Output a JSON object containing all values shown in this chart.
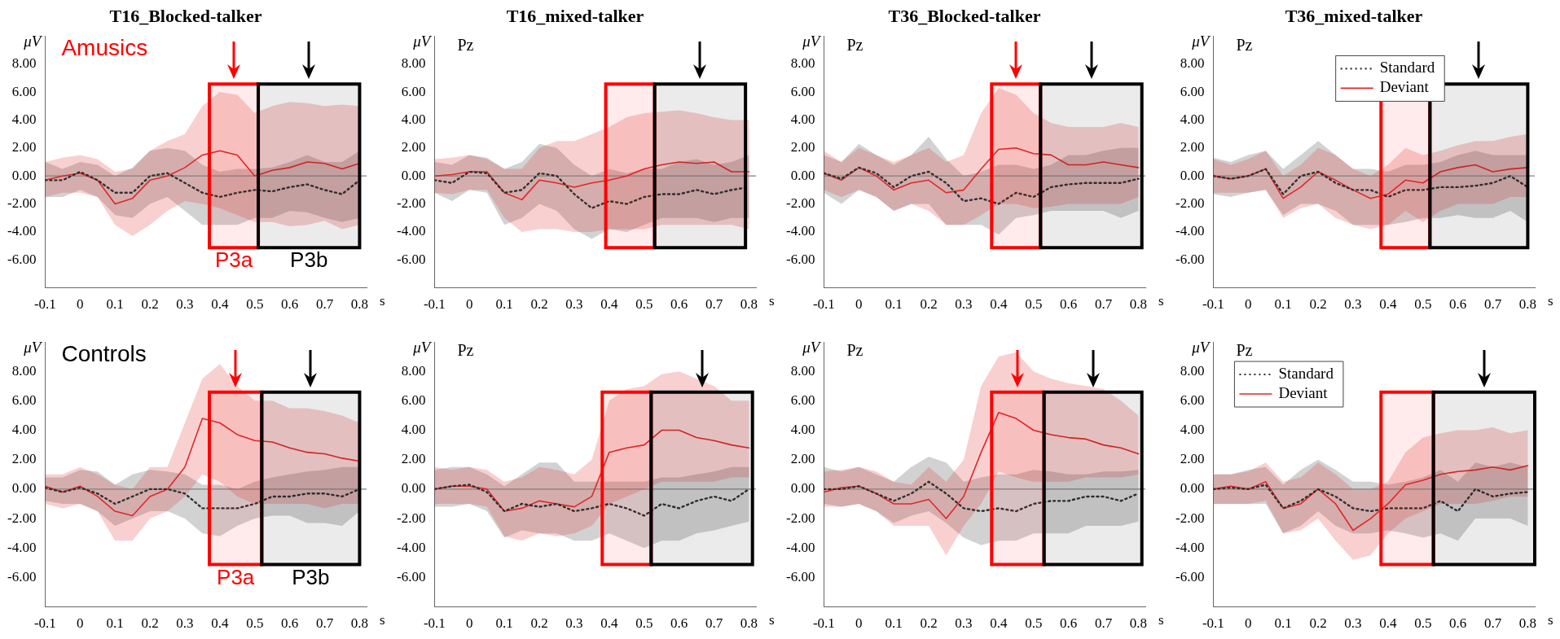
{
  "chart_data": [
    {
      "type": "line",
      "title": "T16_Blocked-talker",
      "xlabel": "s",
      "ylabel": "μV",
      "annotations": [
        "Amusics"
      ],
      "x": [
        -0.1,
        -0.05,
        0,
        0.05,
        0.1,
        0.15,
        0.2,
        0.25,
        0.3,
        0.35,
        0.4,
        0.45,
        0.5,
        0.55,
        0.6,
        0.65,
        0.7,
        0.75,
        0.8
      ],
      "xlim": [
        -0.1,
        0.82
      ],
      "ylim": [
        -8,
        10
      ],
      "xticks": [
        -0.1,
        0,
        0.1,
        0.2,
        0.3,
        0.4,
        0.5,
        0.6,
        0.7,
        0.8
      ],
      "yticks": [
        {
          "value": -6,
          "label": "-6.00"
        },
        {
          "value": -4,
          "label": "-4.00"
        },
        {
          "value": -2,
          "label": "-2.00"
        },
        {
          "value": 0,
          "label": "0.00"
        },
        {
          "value": 2,
          "label": "2.00"
        },
        {
          "value": 4,
          "label": "4.00"
        },
        {
          "value": 6,
          "label": "6.00"
        },
        {
          "value": 8,
          "label": "8.00"
        }
      ],
      "ref_lines": [
        {
          "axis": "y",
          "value": 0,
          "color": "#808080"
        }
      ],
      "bands": [
        {
          "axis": "x",
          "from": 0.37,
          "to": 0.51,
          "color": "#ff0000",
          "label": "P3a"
        },
        {
          "axis": "x",
          "from": 0.51,
          "to": 0.8,
          "color": "#000000",
          "label": "P3b"
        }
      ],
      "series": [
        {
          "color": "#303030",
          "line_style": "dotted",
          "values": [
            -0.3,
            -0.3,
            0.3,
            -0.3,
            -1.2,
            -1.2,
            0,
            0.2,
            -0.5,
            -1.2,
            -1.5,
            -1.2,
            -1.0,
            -1.1,
            -0.8,
            -0.6,
            -1.0,
            -1.3,
            -0.3
          ],
          "lower": [
            -1.5,
            -1.5,
            -1.0,
            -1.5,
            -2.8,
            -3.0,
            -2.0,
            -1.5,
            -2.5,
            -3.5,
            -3.5,
            -3.5,
            -3.0,
            -3.0,
            -2.5,
            -2.6,
            -3.0,
            -3.3,
            -3.0
          ],
          "upper": [
            1.0,
            0.5,
            1.0,
            0.8,
            0,
            0.6,
            1.8,
            2.0,
            1.8,
            0.8,
            0.3,
            0.5,
            0.5,
            0.6,
            1.0,
            1.5,
            1.0,
            1.0,
            1.8
          ]
        },
        {
          "color": "#e02828",
          "line_style": "solid",
          "values": [
            -0.3,
            0,
            0.2,
            -0.3,
            -2.0,
            -1.6,
            -0.3,
            0,
            0.6,
            1.5,
            1.8,
            1.5,
            0,
            0.4,
            0.6,
            1.0,
            0.9,
            0.5,
            0.9
          ],
          "lower": [
            -1.5,
            -1.2,
            -1.2,
            -1.5,
            -3.5,
            -4.3,
            -3.5,
            -2.5,
            -1.8,
            -2.0,
            -2.3,
            -2.8,
            -3.3,
            -3.3,
            -3.6,
            -3.5,
            -3.2,
            -3.8,
            -3.5
          ],
          "upper": [
            1.0,
            1.3,
            1.5,
            1.2,
            0.3,
            0.5,
            1.8,
            2.5,
            3.0,
            5.0,
            6.0,
            5.8,
            4.5,
            5.0,
            5.3,
            5.2,
            5.0,
            5.1,
            5.0
          ]
        }
      ]
    },
    {
      "type": "line",
      "title": "T16_mixed-talker",
      "xlabel": "s",
      "ylabel": "μV",
      "annotations": [
        "Pz"
      ],
      "x": [
        -0.1,
        -0.05,
        0,
        0.05,
        0.1,
        0.15,
        0.2,
        0.25,
        0.3,
        0.35,
        0.4,
        0.45,
        0.5,
        0.55,
        0.6,
        0.65,
        0.7,
        0.75,
        0.8
      ],
      "xlim": [
        -0.1,
        0.82
      ],
      "ylim": [
        -8,
        10
      ],
      "xticks": [
        -0.1,
        0,
        0.1,
        0.2,
        0.3,
        0.4,
        0.5,
        0.6,
        0.7,
        0.8
      ],
      "yticks": [
        {
          "value": -6,
          "label": "-6.00"
        },
        {
          "value": -4,
          "label": "-4.00"
        },
        {
          "value": -2,
          "label": "-2.00"
        },
        {
          "value": 0,
          "label": "0.00"
        },
        {
          "value": 2,
          "label": "2.00"
        },
        {
          "value": 4,
          "label": "4.00"
        },
        {
          "value": 6,
          "label": "6.00"
        },
        {
          "value": 8,
          "label": "8.00"
        }
      ],
      "ref_lines": [
        {
          "axis": "y",
          "value": 0,
          "color": "#808080"
        }
      ],
      "bands": [
        {
          "axis": "x",
          "from": 0.39,
          "to": 0.53,
          "color": "#ff0000"
        },
        {
          "axis": "x",
          "from": 0.53,
          "to": 0.79,
          "color": "#000000"
        }
      ],
      "series": [
        {
          "color": "#303030",
          "line_style": "dotted",
          "values": [
            -0.3,
            -0.5,
            0.3,
            0.2,
            -1.2,
            -1.0,
            0.2,
            0,
            -1.3,
            -2.3,
            -1.8,
            -2.0,
            -1.5,
            -1.3,
            -1.3,
            -1.0,
            -1.3,
            -1.0,
            -0.8
          ],
          "lower": [
            -1.2,
            -1.8,
            -1.0,
            -1.2,
            -3.5,
            -3.0,
            -2.0,
            -2.5,
            -3.8,
            -4.5,
            -3.8,
            -4.0,
            -3.5,
            -3.0,
            -3.0,
            -3.0,
            -3.3,
            -3.0,
            -3.0
          ],
          "upper": [
            1.0,
            0.8,
            1.5,
            1.3,
            0.5,
            1.0,
            2.3,
            2.0,
            0.8,
            0,
            0.5,
            0.2,
            0.5,
            0.5,
            1.0,
            1.2,
            0.8,
            1.0,
            1.5
          ]
        },
        {
          "color": "#e02828",
          "line_style": "solid",
          "values": [
            0,
            0.1,
            0.3,
            0.3,
            -1.2,
            -1.7,
            -0.3,
            -0.5,
            -0.8,
            -0.5,
            -0.3,
            0,
            0.5,
            0.8,
            1.0,
            0.9,
            1.0,
            0.3,
            0.3
          ],
          "lower": [
            -1.2,
            -1.3,
            -1.0,
            -1.0,
            -3.0,
            -4.0,
            -3.8,
            -3.8,
            -4.0,
            -4.0,
            -3.8,
            -3.8,
            -3.8,
            -3.5,
            -3.5,
            -3.5,
            -3.5,
            -3.5,
            -3.8
          ],
          "upper": [
            1.2,
            1.3,
            1.5,
            1.2,
            0.5,
            0.5,
            2.0,
            2.5,
            2.5,
            3.0,
            3.5,
            4.2,
            4.5,
            4.6,
            4.7,
            4.5,
            4.2,
            4.0,
            4.0
          ]
        }
      ]
    },
    {
      "type": "line",
      "title": "T36_Blocked-talker",
      "xlabel": "s",
      "ylabel": "μV",
      "annotations": [
        "Pz"
      ],
      "x": [
        -0.1,
        -0.05,
        0,
        0.05,
        0.1,
        0.15,
        0.2,
        0.25,
        0.3,
        0.35,
        0.4,
        0.45,
        0.5,
        0.55,
        0.6,
        0.65,
        0.7,
        0.75,
        0.8
      ],
      "xlim": [
        -0.1,
        0.82
      ],
      "ylim": [
        -8,
        10
      ],
      "xticks": [
        -0.1,
        0,
        0.1,
        0.2,
        0.3,
        0.4,
        0.5,
        0.6,
        0.7,
        0.8
      ],
      "yticks": [
        {
          "value": -6,
          "label": "-6.00"
        },
        {
          "value": -4,
          "label": "-4.00"
        },
        {
          "value": -2,
          "label": "-2.00"
        },
        {
          "value": 0,
          "label": "0.00"
        },
        {
          "value": 2,
          "label": "2.00"
        },
        {
          "value": 4,
          "label": "4.00"
        },
        {
          "value": 6,
          "label": "6.00"
        },
        {
          "value": 8,
          "label": "8.00"
        }
      ],
      "ref_lines": [
        {
          "axis": "y",
          "value": 0,
          "color": "#808080"
        }
      ],
      "bands": [
        {
          "axis": "x",
          "from": 0.38,
          "to": 0.52,
          "color": "#ff0000"
        },
        {
          "axis": "x",
          "from": 0.52,
          "to": 0.81,
          "color": "#000000"
        }
      ],
      "series": [
        {
          "color": "#303030",
          "line_style": "dotted",
          "values": [
            0.2,
            -0.2,
            0.6,
            0.2,
            -0.8,
            0,
            0.3,
            -0.5,
            -1.8,
            -1.6,
            -2.0,
            -1.2,
            -1.5,
            -0.8,
            -0.6,
            -0.5,
            -0.5,
            -0.5,
            -0.2
          ],
          "lower": [
            -1.2,
            -2.0,
            -1.0,
            -1.5,
            -2.5,
            -2.0,
            -2.0,
            -3.5,
            -3.5,
            -3.5,
            -4.2,
            -3.0,
            -2.8,
            -2.5,
            -2.5,
            -2.5,
            -2.5,
            -3.0,
            -2.5
          ],
          "upper": [
            1.5,
            1.0,
            2.3,
            1.5,
            0.8,
            1.5,
            2.8,
            1.2,
            0,
            0.3,
            0.8,
            0.8,
            0.5,
            0.8,
            1.5,
            1.5,
            1.8,
            2.0,
            2.0
          ]
        },
        {
          "color": "#e02828",
          "line_style": "solid",
          "values": [
            0.2,
            -0.3,
            0.6,
            0,
            -1.0,
            -0.5,
            -0.3,
            -1.2,
            -1.0,
            0.5,
            1.9,
            2.0,
            1.6,
            1.5,
            0.8,
            0.8,
            1.0,
            0.8,
            0.6
          ],
          "lower": [
            -1.0,
            -1.5,
            -1.0,
            -1.5,
            -2.5,
            -2.0,
            -2.5,
            -3.5,
            -3.5,
            -2.8,
            -2.0,
            -2.0,
            -2.3,
            -2.2,
            -2.0,
            -2.0,
            -2.0,
            -2.0,
            -1.5
          ],
          "upper": [
            1.8,
            1.0,
            2.0,
            1.5,
            1.0,
            1.5,
            2.0,
            1.0,
            1.5,
            4.5,
            6.3,
            5.8,
            4.5,
            3.8,
            3.5,
            3.5,
            3.5,
            3.8,
            3.5
          ]
        }
      ]
    },
    {
      "type": "line",
      "title": "T36_mixed-talker",
      "xlabel": "s",
      "ylabel": "μV",
      "annotations": [
        "Pz"
      ],
      "legend": "top right",
      "x": [
        -0.1,
        -0.05,
        0,
        0.05,
        0.1,
        0.15,
        0.2,
        0.25,
        0.3,
        0.35,
        0.4,
        0.45,
        0.5,
        0.55,
        0.6,
        0.65,
        0.7,
        0.75,
        0.8
      ],
      "xlim": [
        -0.1,
        0.82
      ],
      "ylim": [
        -8,
        10
      ],
      "xticks": [
        -0.1,
        0,
        0.1,
        0.2,
        0.3,
        0.4,
        0.5,
        0.6,
        0.7,
        0.8
      ],
      "yticks": [
        {
          "value": -6,
          "label": "-6.00"
        },
        {
          "value": -4,
          "label": "-4.00"
        },
        {
          "value": -2,
          "label": "-2.00"
        },
        {
          "value": 0,
          "label": "0.00"
        },
        {
          "value": 2,
          "label": "2.00"
        },
        {
          "value": 4,
          "label": "4.00"
        },
        {
          "value": 6,
          "label": "6.00"
        },
        {
          "value": 8,
          "label": "8.00"
        }
      ],
      "ref_lines": [
        {
          "axis": "y",
          "value": 0,
          "color": "#808080"
        }
      ],
      "bands": [
        {
          "axis": "x",
          "from": 0.38,
          "to": 0.52,
          "color": "#ff0000"
        },
        {
          "axis": "x",
          "from": 0.52,
          "to": 0.8,
          "color": "#000000"
        }
      ],
      "series": [
        {
          "name": "Standard",
          "color": "#303030",
          "line_style": "dotted",
          "values": [
            0,
            -0.2,
            0,
            0.5,
            -1.3,
            0,
            0.3,
            -0.5,
            -1.0,
            -1.0,
            -1.5,
            -1.0,
            -1.0,
            -0.8,
            -0.8,
            -0.7,
            -0.5,
            0,
            -0.8
          ],
          "lower": [
            -1.3,
            -1.5,
            -1.2,
            -1.0,
            -2.8,
            -2.0,
            -2.0,
            -2.5,
            -3.5,
            -3.5,
            -3.5,
            -3.3,
            -3.0,
            -3.0,
            -2.8,
            -3.0,
            -3.0,
            -2.5,
            -3.3
          ],
          "upper": [
            1.3,
            1.0,
            1.5,
            1.8,
            0.5,
            1.5,
            2.5,
            1.5,
            0.5,
            0.5,
            0.3,
            0.8,
            0.8,
            1.0,
            1.5,
            1.8,
            1.5,
            1.5,
            1.5
          ]
        },
        {
          "name": "Deviant",
          "color": "#e02828",
          "line_style": "solid",
          "values": [
            0,
            -0.2,
            0,
            0.5,
            -1.6,
            -0.8,
            0.3,
            -0.3,
            -1.0,
            -1.6,
            -1.3,
            -0.3,
            -0.5,
            0.3,
            0.6,
            0.8,
            0.3,
            0.5,
            0.6
          ],
          "lower": [
            -1.2,
            -1.2,
            -1.2,
            -1.0,
            -3.0,
            -2.3,
            -2.0,
            -3.0,
            -3.5,
            -3.8,
            -3.5,
            -2.5,
            -3.3,
            -2.5,
            -2.0,
            -2.0,
            -2.0,
            -1.5,
            -1.5
          ],
          "upper": [
            1.2,
            0.8,
            1.2,
            1.8,
            0,
            0.8,
            2.0,
            1.5,
            0.5,
            0,
            0.8,
            2.0,
            1.5,
            1.8,
            2.2,
            2.5,
            2.5,
            2.8,
            3.0
          ]
        }
      ]
    },
    {
      "type": "line",
      "xlabel": "s",
      "ylabel": "μV",
      "annotations": [
        "Controls"
      ],
      "x": [
        -0.1,
        -0.05,
        0,
        0.05,
        0.1,
        0.15,
        0.2,
        0.25,
        0.3,
        0.35,
        0.4,
        0.45,
        0.5,
        0.55,
        0.6,
        0.65,
        0.7,
        0.75,
        0.8
      ],
      "xlim": [
        -0.1,
        0.82
      ],
      "ylim": [
        -8,
        10
      ],
      "xticks": [
        -0.1,
        0,
        0.1,
        0.2,
        0.3,
        0.4,
        0.5,
        0.6,
        0.7,
        0.8
      ],
      "yticks": [
        {
          "value": -6,
          "label": "-6.00"
        },
        {
          "value": -4,
          "label": "-4.00"
        },
        {
          "value": -2,
          "label": "-2.00"
        },
        {
          "value": 0,
          "label": "0.00"
        },
        {
          "value": 2,
          "label": "2.00"
        },
        {
          "value": 4,
          "label": "4.00"
        },
        {
          "value": 6,
          "label": "6.00"
        },
        {
          "value": 8,
          "label": "8.00"
        }
      ],
      "ref_lines": [
        {
          "axis": "y",
          "value": 0,
          "color": "#808080"
        }
      ],
      "bands": [
        {
          "axis": "x",
          "from": 0.37,
          "to": 0.52,
          "color": "#ff0000",
          "label": "P3a"
        },
        {
          "axis": "x",
          "from": 0.52,
          "to": 0.8,
          "color": "#000000",
          "label": "P3b"
        }
      ],
      "series": [
        {
          "color": "#303030",
          "line_style": "dotted",
          "values": [
            0.1,
            -0.2,
            0.1,
            -0.3,
            -1.0,
            -0.5,
            0,
            0,
            -0.3,
            -1.3,
            -1.3,
            -1.3,
            -1.0,
            -0.5,
            -0.5,
            -0.3,
            -0.3,
            -0.5,
            0
          ],
          "lower": [
            -0.8,
            -1.0,
            -1.0,
            -1.5,
            -2.5,
            -2.0,
            -1.5,
            -1.5,
            -2.0,
            -3.0,
            -3.2,
            -2.5,
            -2.0,
            -1.8,
            -1.8,
            -2.3,
            -2.3,
            -2.5,
            -1.5
          ],
          "upper": [
            0.8,
            0.8,
            1.3,
            1.2,
            0.3,
            1.0,
            1.3,
            1.2,
            1.0,
            0.3,
            0.3,
            0,
            0.5,
            0.8,
            1.0,
            1.2,
            1.3,
            1.5,
            1.5
          ]
        },
        {
          "color": "#e02828",
          "line_style": "solid",
          "values": [
            0.2,
            -0.2,
            0.2,
            -0.5,
            -1.5,
            -1.8,
            -0.5,
            0,
            1.5,
            4.8,
            4.5,
            3.7,
            3.3,
            3.2,
            2.8,
            2.5,
            2.4,
            2.1,
            1.9
          ],
          "lower": [
            -1.0,
            -1.3,
            -1.0,
            -1.5,
            -3.5,
            -3.5,
            -2.0,
            -1.5,
            -0.5,
            1.0,
            0.5,
            -0.5,
            -1.0,
            -1.0,
            -1.0,
            -1.0,
            -1.3,
            -1.0,
            -1.0
          ],
          "upper": [
            1.0,
            1.0,
            1.5,
            1.0,
            0.3,
            0,
            1.5,
            1.5,
            4.5,
            7.5,
            8.5,
            7.0,
            6.0,
            6.0,
            5.5,
            5.5,
            5.3,
            5.0,
            4.5
          ]
        }
      ]
    },
    {
      "type": "line",
      "xlabel": "s",
      "ylabel": "μV",
      "annotations": [
        "Pz"
      ],
      "x": [
        -0.1,
        -0.05,
        0,
        0.05,
        0.1,
        0.15,
        0.2,
        0.25,
        0.3,
        0.35,
        0.4,
        0.45,
        0.5,
        0.55,
        0.6,
        0.65,
        0.7,
        0.75,
        0.8
      ],
      "xlim": [
        -0.1,
        0.82
      ],
      "ylim": [
        -8,
        10
      ],
      "xticks": [
        -0.1,
        0,
        0.1,
        0.2,
        0.3,
        0.4,
        0.5,
        0.6,
        0.7,
        0.8
      ],
      "yticks": [
        {
          "value": -6,
          "label": "-6.00"
        },
        {
          "value": -4,
          "label": "-4.00"
        },
        {
          "value": -2,
          "label": "-2.00"
        },
        {
          "value": 0,
          "label": "0.00"
        },
        {
          "value": 2,
          "label": "2.00"
        },
        {
          "value": 4,
          "label": "4.00"
        },
        {
          "value": 6,
          "label": "6.00"
        },
        {
          "value": 8,
          "label": "8.00"
        }
      ],
      "ref_lines": [
        {
          "axis": "y",
          "value": 0,
          "color": "#808080"
        }
      ],
      "bands": [
        {
          "axis": "x",
          "from": 0.38,
          "to": 0.52,
          "color": "#ff0000"
        },
        {
          "axis": "x",
          "from": 0.52,
          "to": 0.81,
          "color": "#000000"
        }
      ],
      "series": [
        {
          "color": "#303030",
          "line_style": "dotted",
          "values": [
            0,
            0.2,
            0.3,
            -0.2,
            -1.5,
            -1.0,
            -1.2,
            -1.0,
            -1.5,
            -1.3,
            -1.0,
            -1.3,
            -1.8,
            -1.0,
            -1.3,
            -0.8,
            -0.5,
            -0.8,
            0
          ],
          "lower": [
            -1.2,
            -1.2,
            -1.0,
            -1.5,
            -3.3,
            -2.8,
            -3.0,
            -3.0,
            -3.5,
            -3.5,
            -3.0,
            -3.5,
            -4.0,
            -3.5,
            -3.5,
            -3.0,
            -2.8,
            -2.5,
            -2.2
          ],
          "upper": [
            1.3,
            1.5,
            1.5,
            1.0,
            0.2,
            1.0,
            1.8,
            1.8,
            0.5,
            0.5,
            0.5,
            0.5,
            0.5,
            0.8,
            0.8,
            1.0,
            1.2,
            1.5,
            1.5
          ]
        },
        {
          "color": "#e02828",
          "line_style": "solid",
          "values": [
            0,
            0.2,
            0.2,
            0,
            -1.5,
            -1.3,
            -0.8,
            -1.0,
            -1.2,
            -0.5,
            2.5,
            2.8,
            3.0,
            4.0,
            4.0,
            3.5,
            3.3,
            3.0,
            2.8
          ],
          "lower": [
            -1.0,
            -1.0,
            -1.0,
            -1.2,
            -3.2,
            -3.5,
            -3.0,
            -3.2,
            -3.0,
            -2.5,
            -1.0,
            -0.5,
            0,
            0.5,
            0.5,
            0.5,
            0.5,
            0.8,
            0.8
          ],
          "upper": [
            1.5,
            1.3,
            1.5,
            1.3,
            0.5,
            0.8,
            1.5,
            1.3,
            1.0,
            2.0,
            6.0,
            6.8,
            7.0,
            7.8,
            8.0,
            7.5,
            7.0,
            6.0,
            6.0
          ]
        }
      ]
    },
    {
      "type": "line",
      "xlabel": "s",
      "ylabel": "μV",
      "annotations": [
        "Pz"
      ],
      "x": [
        -0.1,
        -0.05,
        0,
        0.05,
        0.1,
        0.15,
        0.2,
        0.25,
        0.3,
        0.35,
        0.4,
        0.45,
        0.5,
        0.55,
        0.6,
        0.65,
        0.7,
        0.75,
        0.8
      ],
      "xlim": [
        -0.1,
        0.82
      ],
      "ylim": [
        -8,
        10
      ],
      "xticks": [
        -0.1,
        0,
        0.1,
        0.2,
        0.3,
        0.4,
        0.5,
        0.6,
        0.7,
        0.8
      ],
      "yticks": [
        {
          "value": -6,
          "label": "-6.00"
        },
        {
          "value": -4,
          "label": "-4.00"
        },
        {
          "value": -2,
          "label": "-2.00"
        },
        {
          "value": 0,
          "label": "0.00"
        },
        {
          "value": 2,
          "label": "2.00"
        },
        {
          "value": 4,
          "label": "4.00"
        },
        {
          "value": 6,
          "label": "6.00"
        },
        {
          "value": 8,
          "label": "8.00"
        }
      ],
      "ref_lines": [
        {
          "axis": "y",
          "value": 0,
          "color": "#808080"
        }
      ],
      "bands": [
        {
          "axis": "x",
          "from": 0.38,
          "to": 0.53,
          "color": "#ff0000"
        },
        {
          "axis": "x",
          "from": 0.53,
          "to": 0.81,
          "color": "#000000"
        }
      ],
      "series": [
        {
          "color": "#303030",
          "line_style": "dotted",
          "values": [
            0,
            0,
            0.2,
            -0.3,
            -0.8,
            -0.3,
            0.5,
            -0.3,
            -1.3,
            -1.5,
            -1.3,
            -1.5,
            -1.0,
            -0.8,
            -0.8,
            -0.5,
            -0.5,
            -0.8,
            -0.3
          ],
          "lower": [
            -1.0,
            -1.2,
            -1.0,
            -1.5,
            -2.3,
            -1.8,
            -1.5,
            -2.3,
            -3.3,
            -3.8,
            -3.5,
            -3.5,
            -3.0,
            -3.0,
            -3.0,
            -2.5,
            -2.5,
            -2.5,
            -2.2
          ],
          "upper": [
            1.5,
            1.2,
            1.5,
            1.0,
            0.5,
            1.5,
            2.2,
            1.8,
            0.5,
            0.8,
            1.0,
            1.0,
            1.3,
            1.2,
            1.0,
            1.0,
            1.2,
            1.2,
            1.3
          ]
        },
        {
          "color": "#e02828",
          "line_style": "solid",
          "values": [
            -0.2,
            0.1,
            0.2,
            -0.3,
            -1.0,
            -1.0,
            -0.7,
            -2.0,
            -0.5,
            2.5,
            5.2,
            4.8,
            4.0,
            3.7,
            3.5,
            3.4,
            3.0,
            2.8,
            2.4
          ],
          "lower": [
            -1.2,
            -1.2,
            -1.0,
            -1.5,
            -2.5,
            -2.5,
            -2.5,
            -4.5,
            -2.5,
            -1.0,
            1.2,
            0.8,
            0.5,
            0.5,
            0.5,
            0.8,
            0.8,
            0.8,
            1.0
          ],
          "upper": [
            1.2,
            1.3,
            1.5,
            1.2,
            0.5,
            0.3,
            1.5,
            0.5,
            2.0,
            7.0,
            9.0,
            9.3,
            8.0,
            7.5,
            7.2,
            7.0,
            6.8,
            6.0,
            5.0
          ]
        }
      ]
    },
    {
      "type": "line",
      "xlabel": "s",
      "ylabel": "μV",
      "annotations": [
        "Pz"
      ],
      "legend": "top left",
      "x": [
        -0.1,
        -0.05,
        0,
        0.05,
        0.1,
        0.15,
        0.2,
        0.25,
        0.3,
        0.35,
        0.4,
        0.45,
        0.5,
        0.55,
        0.6,
        0.65,
        0.7,
        0.75,
        0.8
      ],
      "xlim": [
        -0.1,
        0.82
      ],
      "ylim": [
        -8,
        10
      ],
      "xticks": [
        -0.1,
        0,
        0.1,
        0.2,
        0.3,
        0.4,
        0.5,
        0.6,
        0.7,
        0.8
      ],
      "yticks": [
        {
          "value": -6,
          "label": "-6.00"
        },
        {
          "value": -4,
          "label": "-4.00"
        },
        {
          "value": -2,
          "label": "-2.00"
        },
        {
          "value": 0,
          "label": "0.00"
        },
        {
          "value": 2,
          "label": "2.00"
        },
        {
          "value": 4,
          "label": "4.00"
        },
        {
          "value": 6,
          "label": "6.00"
        },
        {
          "value": 8,
          "label": "8.00"
        }
      ],
      "ref_lines": [
        {
          "axis": "y",
          "value": 0,
          "color": "#808080"
        }
      ],
      "bands": [
        {
          "axis": "x",
          "from": 0.38,
          "to": 0.53,
          "color": "#ff0000"
        },
        {
          "axis": "x",
          "from": 0.53,
          "to": 0.82,
          "color": "#000000"
        }
      ],
      "series": [
        {
          "name": "Standard",
          "color": "#303030",
          "line_style": "dotted",
          "values": [
            0,
            0.1,
            0,
            0.3,
            -1.3,
            -0.8,
            0,
            -0.5,
            -1.3,
            -1.5,
            -1.3,
            -1.3,
            -1.3,
            -0.8,
            -1.5,
            0,
            -0.5,
            -0.3,
            -0.2
          ],
          "lower": [
            -1.0,
            -1.0,
            -1.0,
            -1.0,
            -3.0,
            -2.5,
            -1.5,
            -2.5,
            -3.0,
            -3.0,
            -2.8,
            -3.0,
            -3.3,
            -3.0,
            -3.5,
            -2.0,
            -2.0,
            -2.0,
            -2.5
          ],
          "upper": [
            1.0,
            1.0,
            1.3,
            1.5,
            0.3,
            1.3,
            2.0,
            1.3,
            0.5,
            0.5,
            0.3,
            0.5,
            0.8,
            1.3,
            0.5,
            1.8,
            1.5,
            1.8,
            1.5
          ]
        },
        {
          "name": "Deviant",
          "color": "#e02828",
          "line_style": "solid",
          "values": [
            0,
            0.2,
            0,
            0.5,
            -1.3,
            -1.0,
            0,
            -1.0,
            -2.8,
            -2.0,
            -1.0,
            0.3,
            0.6,
            1.0,
            1.2,
            1.3,
            1.5,
            1.3,
            1.6
          ],
          "lower": [
            -1.0,
            -1.0,
            -1.0,
            -0.8,
            -3.0,
            -2.8,
            -2.0,
            -3.5,
            -4.8,
            -4.5,
            -3.0,
            -2.0,
            -1.5,
            -1.0,
            -1.0,
            -1.0,
            -0.8,
            -0.5,
            -0.5
          ],
          "upper": [
            1.0,
            1.0,
            1.2,
            1.8,
            0.5,
            0.8,
            1.8,
            1.0,
            0,
            0,
            0.5,
            2.5,
            3.5,
            3.8,
            4.0,
            4.0,
            4.2,
            3.8,
            4.0
          ]
        }
      ]
    }
  ]
}
